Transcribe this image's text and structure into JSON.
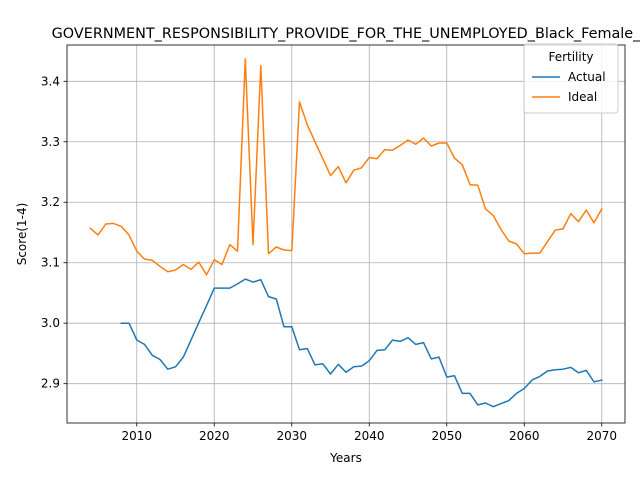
{
  "chart_data": {
    "type": "line",
    "title": "GOVERNMENT_RESPONSIBILITY_PROVIDE_FOR_THE_UNEMPLOYED_Black_Female_",
    "xlabel": "Years",
    "ylabel": "Score(1-4)",
    "xlim": [
      2001,
      2073
    ],
    "ylim": [
      2.835,
      3.46
    ],
    "xticks": [
      "2010",
      "2020",
      "2030",
      "2040",
      "2050",
      "2060",
      "2070"
    ],
    "yticks": [
      "2.9",
      "3.0",
      "3.1",
      "3.2",
      "3.3",
      "3.4"
    ],
    "grid": true,
    "legend": {
      "title": "Fertility",
      "placement": "top-right"
    },
    "series": [
      {
        "name": "Actual",
        "color": "#1f77b4",
        "x": [
          2008,
          2009,
          2010,
          2011,
          2012,
          2013,
          2014,
          2015,
          2016,
          2017,
          2018,
          2019,
          2020,
          2021,
          2022,
          2023,
          2024,
          2025,
          2026,
          2027,
          2028,
          2029,
          2030,
          2031,
          2032,
          2033,
          2034,
          2035,
          2036,
          2037,
          2038,
          2039,
          2040,
          2041,
          2042,
          2043,
          2044,
          2045,
          2046,
          2047,
          2048,
          2049,
          2050,
          2051,
          2052,
          2053,
          2054,
          2055,
          2056,
          2057,
          2058,
          2059,
          2060,
          2061,
          2062,
          2063,
          2064,
          2065,
          2066,
          2067,
          2068,
          2069,
          2070
        ],
        "values": [
          3.0,
          3.0,
          2.972,
          2.965,
          2.947,
          2.94,
          2.924,
          2.928,
          2.944,
          2.972,
          3.001,
          3.029,
          3.058,
          3.058,
          3.058,
          3.065,
          3.073,
          3.068,
          3.072,
          3.044,
          3.04,
          2.994,
          2.994,
          2.956,
          2.958,
          2.931,
          2.933,
          2.916,
          2.932,
          2.919,
          2.928,
          2.929,
          2.938,
          2.955,
          2.956,
          2.972,
          2.97,
          2.976,
          2.965,
          2.968,
          2.941,
          2.944,
          2.911,
          2.913,
          2.884,
          2.884,
          2.865,
          2.868,
          2.862,
          2.867,
          2.872,
          2.884,
          2.892,
          2.906,
          2.912,
          2.921,
          2.923,
          2.924,
          2.927,
          2.918,
          2.922,
          2.903,
          2.906
        ]
      },
      {
        "name": "Ideal",
        "color": "#ff7f0e",
        "x": [
          2004,
          2005,
          2006,
          2007,
          2008,
          2009,
          2010,
          2011,
          2012,
          2013,
          2014,
          2015,
          2016,
          2017,
          2018,
          2019,
          2020,
          2021,
          2022,
          2023,
          2024,
          2025,
          2026,
          2027,
          2028,
          2029,
          2030,
          2031,
          2032,
          2033,
          2034,
          2035,
          2036,
          2037,
          2038,
          2039,
          2040,
          2041,
          2042,
          2043,
          2044,
          2045,
          2046,
          2047,
          2048,
          2049,
          2050,
          2051,
          2052,
          2053,
          2054,
          2055,
          2056,
          2057,
          2058,
          2059,
          2060,
          2061,
          2062,
          2063,
          2064,
          2065,
          2066,
          2067,
          2068,
          2069,
          2070
        ],
        "values": [
          3.157,
          3.146,
          3.164,
          3.165,
          3.16,
          3.146,
          3.119,
          3.106,
          3.104,
          3.094,
          3.085,
          3.088,
          3.097,
          3.089,
          3.101,
          3.08,
          3.105,
          3.097,
          3.13,
          3.119,
          3.437,
          3.13,
          3.426,
          3.115,
          3.126,
          3.121,
          3.12,
          3.366,
          3.328,
          3.3,
          3.272,
          3.244,
          3.259,
          3.232,
          3.253,
          3.257,
          3.274,
          3.272,
          3.287,
          3.286,
          3.294,
          3.303,
          3.296,
          3.306,
          3.293,
          3.298,
          3.298,
          3.273,
          3.262,
          3.229,
          3.228,
          3.189,
          3.178,
          3.155,
          3.136,
          3.131,
          3.115,
          3.116,
          3.116,
          3.135,
          3.154,
          3.156,
          3.181,
          3.168,
          3.187,
          3.166,
          3.189
        ]
      }
    ]
  }
}
